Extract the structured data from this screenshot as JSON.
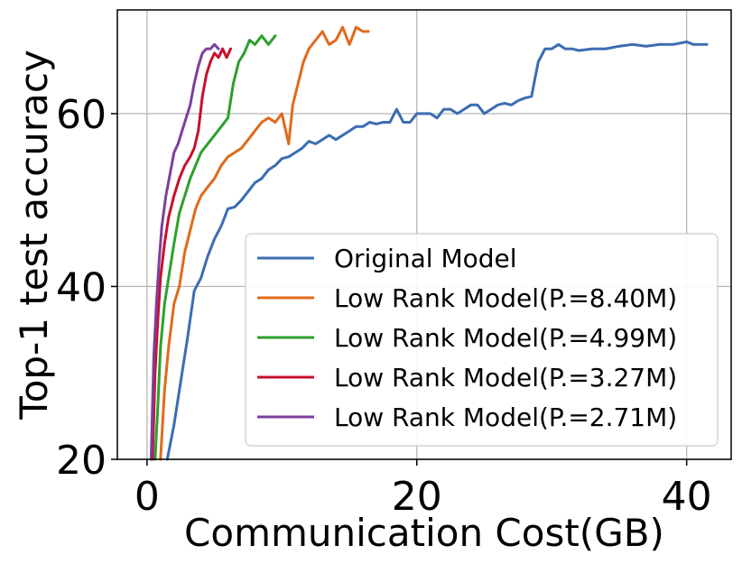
{
  "chart_data": {
    "type": "line",
    "title": "",
    "xlabel": "Communication Cost(GB)",
    "ylabel": "Top-1 test accuracy",
    "xlim": [
      -2.2,
      43.3
    ],
    "ylim": [
      20,
      72
    ],
    "xticks": [
      "0",
      "20",
      "40"
    ],
    "xtick_values": [
      0,
      20,
      40
    ],
    "yticks": [
      "20",
      "40",
      "60"
    ],
    "ytick_values": [
      20,
      40,
      60
    ],
    "grid": true,
    "legend_position": "lower-right",
    "series": [
      {
        "name": "Original Model",
        "color": "#3b6db3",
        "x": [
          1.5,
          2.0,
          2.5,
          3.0,
          3.5,
          4.0,
          4.5,
          5.0,
          5.5,
          6.0,
          6.5,
          7.0,
          7.5,
          8.0,
          8.5,
          9.0,
          9.5,
          10.0,
          10.5,
          11.0,
          11.5,
          12.0,
          12.5,
          13.0,
          13.5,
          14.0,
          14.5,
          15.0,
          15.5,
          16.0,
          16.5,
          17.0,
          17.5,
          18.0,
          18.5,
          19.0,
          19.5,
          20.0,
          20.5,
          21.0,
          21.5,
          22.0,
          22.5,
          23.0,
          23.5,
          24.0,
          24.5,
          25.0,
          25.5,
          26.0,
          26.5,
          27.0,
          27.5,
          28.0,
          28.5,
          29.0,
          29.5,
          30.0,
          30.5,
          31.0,
          31.5,
          32.0,
          33.0,
          34.0,
          35.0,
          36.0,
          37.0,
          38.0,
          39.0,
          40.0,
          40.5,
          41.0,
          41.5
        ],
        "y": [
          20.0,
          24.0,
          29.0,
          34.0,
          39.5,
          41.0,
          43.5,
          45.5,
          47.0,
          49.0,
          49.2,
          50.0,
          51.0,
          52.0,
          52.5,
          53.5,
          54.0,
          54.8,
          55.0,
          55.5,
          56.0,
          56.8,
          56.5,
          57.0,
          57.5,
          57.0,
          57.5,
          58.0,
          58.5,
          58.5,
          59.0,
          58.8,
          59.0,
          59.0,
          60.5,
          59.0,
          59.0,
          60.0,
          60.0,
          60.0,
          59.5,
          60.5,
          60.5,
          60.0,
          60.5,
          61.0,
          61.0,
          60.0,
          60.5,
          61.0,
          61.2,
          61.0,
          61.5,
          61.8,
          62.0,
          66.0,
          67.5,
          67.5,
          68.0,
          67.5,
          67.5,
          67.3,
          67.5,
          67.5,
          67.8,
          68.0,
          67.8,
          68.0,
          68.0,
          68.3,
          68.0,
          68.0,
          68.0
        ]
      },
      {
        "name": "Low Rank Model(P.=8.40M)",
        "color": "#e06a1b",
        "x": [
          1.0,
          1.3,
          1.6,
          2.0,
          2.4,
          2.8,
          3.2,
          3.6,
          4.0,
          4.5,
          5.0,
          5.5,
          6.0,
          6.5,
          7.0,
          7.5,
          8.0,
          8.5,
          9.0,
          9.5,
          10.0,
          10.5,
          10.8,
          11.2,
          11.6,
          12.0,
          12.5,
          13.0,
          13.5,
          14.0,
          14.5,
          15.0,
          15.5,
          16.0,
          16.4
        ],
        "y": [
          20.0,
          28.0,
          33.0,
          38.0,
          40.0,
          44.0,
          46.5,
          49.0,
          50.5,
          51.5,
          52.5,
          54.0,
          55.0,
          55.5,
          56.0,
          57.0,
          58.0,
          59.0,
          59.5,
          59.0,
          60.0,
          56.5,
          61.0,
          63.5,
          66.0,
          67.5,
          68.5,
          69.5,
          68.0,
          68.5,
          70.0,
          68.0,
          70.0,
          69.5,
          69.5
        ]
      },
      {
        "name": "Low Rank Model(P.=4.99M)",
        "color": "#2ca02c",
        "x": [
          0.6,
          0.8,
          1.0,
          1.3,
          1.6,
          2.0,
          2.4,
          2.8,
          3.2,
          3.6,
          4.0,
          4.5,
          5.0,
          5.5,
          6.0,
          6.4,
          6.8,
          7.2,
          7.6,
          8.0,
          8.5,
          9.0,
          9.5
        ],
        "y": [
          20.0,
          26.0,
          33.0,
          38.0,
          41.0,
          45.0,
          48.5,
          50.5,
          52.5,
          54.0,
          55.5,
          56.5,
          57.5,
          58.5,
          59.5,
          63.5,
          66.0,
          67.0,
          68.5,
          68.0,
          69.0,
          68.0,
          69.0
        ]
      },
      {
        "name": "Low Rank Model(P.=3.27M)",
        "color": "#c8102e",
        "x": [
          0.4,
          0.5,
          0.6,
          0.8,
          1.0,
          1.3,
          1.6,
          2.0,
          2.4,
          2.8,
          3.2,
          3.5,
          3.8,
          4.1,
          4.4,
          4.7,
          5.0,
          5.3,
          5.6,
          5.9,
          6.2
        ],
        "y": [
          20.0,
          25.0,
          30.0,
          36.0,
          41.0,
          45.0,
          48.0,
          50.5,
          52.5,
          54.0,
          55.0,
          56.0,
          58.0,
          62.0,
          64.5,
          66.0,
          67.0,
          66.5,
          67.5,
          66.5,
          67.5
        ]
      },
      {
        "name": "Low Rank Model(P.=2.71M)",
        "color": "#7b3f9e",
        "x": [
          0.3,
          0.4,
          0.5,
          0.7,
          0.9,
          1.1,
          1.4,
          1.7,
          2.0,
          2.3,
          2.6,
          2.9,
          3.2,
          3.5,
          3.8,
          4.1,
          4.4,
          4.7,
          5.0,
          5.3
        ],
        "y": [
          20.0,
          26.0,
          32.0,
          38.0,
          43.0,
          47.0,
          50.5,
          53.0,
          55.5,
          56.5,
          58.0,
          59.5,
          61.0,
          63.5,
          65.5,
          67.0,
          67.5,
          67.5,
          68.0,
          67.5
        ]
      }
    ]
  }
}
